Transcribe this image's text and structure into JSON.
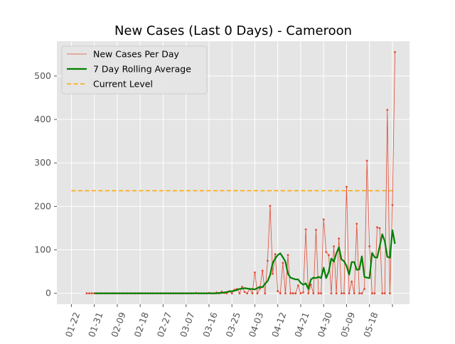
{
  "chart_data": {
    "type": "line",
    "title": "New Cases (Last 0 Days) - Cameroon",
    "xlabel": "",
    "ylabel": "",
    "x_start": "01-22",
    "x_ticks": [
      "01-22",
      "01-31",
      "02-09",
      "02-18",
      "02-27",
      "03-07",
      "03-16",
      "03-25",
      "04-03",
      "04-12",
      "04-21",
      "04-30",
      "05-09",
      "05-18"
    ],
    "ylim": [
      -25,
      580
    ],
    "yticks": [
      0,
      100,
      200,
      300,
      400,
      500
    ],
    "grid": true,
    "legend_position": "top-left",
    "colors": {
      "daily": "#e24a33",
      "rolling": "#008000",
      "current": "#ffa500",
      "panel_bg": "#e5e5e5",
      "grid": "#ffffff"
    },
    "series": [
      {
        "name": "New Cases Per Day",
        "style": "thin line with point markers",
        "values": [
          0,
          0,
          0,
          0,
          0,
          0,
          0,
          0,
          0,
          0,
          0,
          0,
          0,
          0,
          0,
          0,
          0,
          0,
          0,
          0,
          0,
          0,
          0,
          0,
          0,
          0,
          0,
          0,
          0,
          0,
          0,
          0,
          0,
          0,
          0,
          0,
          0,
          0,
          0,
          0,
          0,
          0,
          0,
          0,
          0,
          0,
          0,
          0,
          0,
          1,
          0,
          0,
          0,
          0,
          1,
          0,
          0,
          2,
          0,
          4,
          1,
          0,
          5,
          0,
          8,
          10,
          0,
          15,
          3,
          0,
          10,
          0,
          48,
          0,
          11,
          52,
          0,
          75,
          201,
          45,
          90,
          5,
          0,
          70,
          0,
          88,
          0,
          0,
          0,
          18,
          0,
          2,
          147,
          0,
          20,
          0,
          146,
          0,
          0,
          170,
          95,
          88,
          0,
          108,
          0,
          126,
          0,
          0,
          245,
          0,
          27,
          0,
          160,
          0,
          0,
          10,
          305,
          108,
          0,
          0,
          152,
          150,
          0,
          0,
          422,
          0,
          203,
          555
        ]
      },
      {
        "name": "7 Day Rolling Average",
        "style": "thick line",
        "values": [
          0,
          0,
          0,
          0,
          0,
          0,
          0,
          0,
          0,
          0,
          0,
          0,
          0,
          0,
          0,
          0,
          0,
          0,
          0,
          0,
          0,
          0,
          0,
          0,
          0,
          0,
          0,
          0,
          0,
          0,
          0,
          0,
          0,
          0,
          0,
          0,
          0,
          0,
          0,
          0,
          0,
          0,
          0,
          0,
          0,
          0,
          0,
          0,
          0,
          0,
          0,
          0,
          0,
          0,
          0,
          0,
          0,
          0,
          1,
          1,
          2,
          3,
          4,
          5,
          6,
          8,
          10,
          11,
          12,
          11,
          10,
          10,
          9,
          12,
          15,
          14,
          22,
          28,
          42,
          70,
          80,
          88,
          92,
          83,
          73,
          45,
          36,
          34,
          32,
          32,
          24,
          20,
          23,
          10,
          32,
          36,
          35,
          38,
          35,
          59,
          35,
          50,
          80,
          73,
          92,
          106,
          78,
          74,
          63,
          43,
          72,
          72,
          54,
          55,
          85,
          38,
          36,
          35,
          93,
          83,
          82,
          108,
          136,
          120,
          84,
          82,
          145,
          114,
          124,
          236
        ]
      },
      {
        "name": "Current Level",
        "style": "dashed horizontal line",
        "value": 236
      }
    ]
  }
}
